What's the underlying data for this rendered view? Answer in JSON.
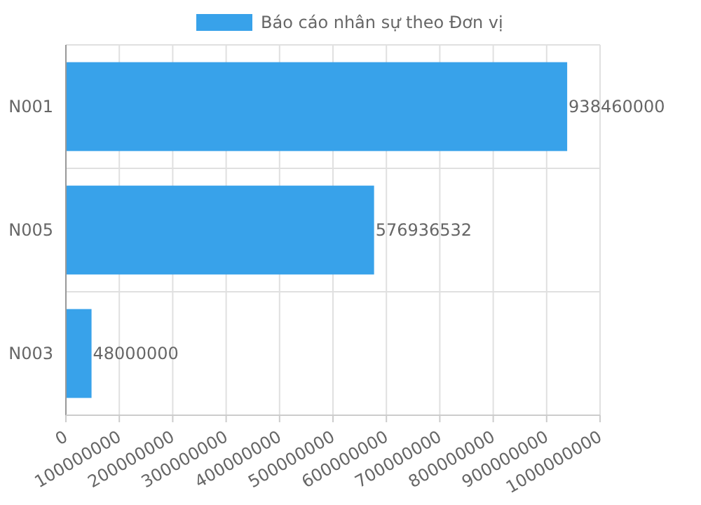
{
  "chart_data": {
    "type": "bar",
    "orientation": "horizontal",
    "categories": [
      "N001",
      "N005",
      "N003"
    ],
    "series": [
      {
        "name": "Báo cáo nhân sự theo Đơn vị",
        "color": "#38a2ea",
        "values": [
          938460000,
          576936532,
          48000000
        ]
      }
    ],
    "xlim": [
      0,
      1000000000
    ],
    "xticks": [
      0,
      100000000,
      200000000,
      300000000,
      400000000,
      500000000,
      600000000,
      700000000,
      800000000,
      900000000,
      1000000000
    ],
    "grid": true,
    "legend": "top",
    "data_labels": true
  }
}
